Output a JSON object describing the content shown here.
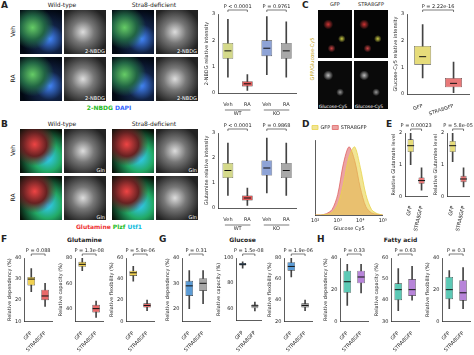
{
  "panel_labels": [
    "A",
    "B",
    "C",
    "D",
    "E",
    "F",
    "G",
    "H"
  ],
  "section_titles": [
    "Glutamine",
    "Glucose",
    "Fatty acid"
  ],
  "images": {
    "A": {
      "columns": [
        "Wild-type",
        "Stra8-deficient"
      ],
      "rows": [
        "Veh",
        "RA"
      ],
      "tile_label": "2-NBDG",
      "stain": [
        "2-NBDG",
        "DAPI"
      ]
    },
    "B": {
      "columns": [
        "Wild-type",
        "Stra8-deficient"
      ],
      "rows": [
        "Veh",
        "RA"
      ],
      "tile_label": "Gln",
      "stain": [
        "Glutamine",
        "Plzf",
        "Utf1"
      ]
    },
    "C": {
      "columns": [
        "GFP",
        "STRA8GFP"
      ],
      "side_label": "GFP/Glucose-Cy5",
      "tile_label": "Glucose-Cy5"
    }
  },
  "chart_data": [
    {
      "type": "box",
      "y_label": "2-NBDG relative intensity",
      "categories": [
        "Veh",
        "RA",
        "Veh",
        "RA"
      ],
      "groups": [
        {
          "label": "WT",
          "from": 0,
          "to": 1
        },
        {
          "label": "KO",
          "from": 2,
          "to": 3
        }
      ],
      "colors": [
        "#d4d98a",
        "#e25b5b",
        "#8ea3d6",
        "#a8a8a8"
      ],
      "stats": [
        {
          "min": 0.6,
          "q1": 1.3,
          "median": 1.6,
          "q3": 1.9,
          "max": 2.8
        },
        {
          "min": 0.1,
          "q1": 0.25,
          "median": 0.35,
          "q3": 0.45,
          "max": 0.7
        },
        {
          "min": 0.7,
          "q1": 1.4,
          "median": 1.7,
          "q3": 2.0,
          "max": 2.9
        },
        {
          "min": 0.6,
          "q1": 1.3,
          "median": 1.6,
          "q3": 1.9,
          "max": 2.7
        }
      ],
      "ylim": [
        0,
        3
      ],
      "yticks": [
        0,
        1,
        2,
        3
      ],
      "grid": false,
      "annotations": [
        {
          "text": "P < 0.0001",
          "from": 0,
          "to": 1
        },
        {
          "text": "P = 0.9761",
          "from": 2,
          "to": 3
        }
      ]
    },
    {
      "type": "box",
      "y_label": "Glucose-Cy5 relative intensity",
      "categories": [
        "GFP",
        "STRA8GFP"
      ],
      "colors": [
        "#e6dc7a",
        "#e87878"
      ],
      "stats": [
        {
          "min": 0.6,
          "q1": 1.1,
          "median": 1.4,
          "q3": 1.8,
          "max": 2.6
        },
        {
          "min": 0.05,
          "q1": 0.25,
          "median": 0.4,
          "q3": 0.6,
          "max": 1.2
        }
      ],
      "ylim": [
        0,
        3
      ],
      "yticks": [
        0,
        1,
        2,
        3
      ],
      "grid": false,
      "annotations": [
        {
          "text": "P = 2.22e-16",
          "from": 0,
          "to": 1
        }
      ]
    },
    {
      "type": "box",
      "y_label": "Glutamine relative intensity",
      "categories": [
        "Veh",
        "RA",
        "Veh",
        "RA"
      ],
      "groups": [
        {
          "label": "WT",
          "from": 0,
          "to": 1
        },
        {
          "label": "KO",
          "from": 2,
          "to": 3
        }
      ],
      "colors": [
        "#d4d98a",
        "#e25b5b",
        "#8ea3d6",
        "#a8a8a8"
      ],
      "stats": [
        {
          "min": 0.5,
          "q1": 1.2,
          "median": 1.5,
          "q3": 1.8,
          "max": 2.6
        },
        {
          "min": 0.1,
          "q1": 0.3,
          "median": 0.4,
          "q3": 0.5,
          "max": 0.8
        },
        {
          "min": 0.6,
          "q1": 1.3,
          "median": 1.6,
          "q3": 1.9,
          "max": 2.8
        },
        {
          "min": 0.5,
          "q1": 1.2,
          "median": 1.5,
          "q3": 1.8,
          "max": 2.6
        }
      ],
      "ylim": [
        0,
        3
      ],
      "yticks": [
        0,
        1,
        2,
        3
      ],
      "grid": false,
      "annotations": [
        {
          "text": "P < 0.0001",
          "from": 0,
          "to": 1
        },
        {
          "text": "P = 0.9868",
          "from": 2,
          "to": 3
        }
      ]
    },
    {
      "type": "area",
      "x_label": "Glucose Cy5",
      "log": "x",
      "x": [
        100,
        178,
        316,
        562,
        1000,
        1778,
        3162,
        5623,
        10000,
        17783,
        31623,
        56234,
        100000
      ],
      "series": [
        {
          "name": "GFP",
          "color": "#e8d44d",
          "values": [
            0,
            0,
            1,
            4,
            15,
            45,
            85,
            100,
            70,
            30,
            8,
            2,
            0
          ]
        },
        {
          "name": "STRA8GFP",
          "color": "#e06666",
          "values": [
            0,
            0,
            2,
            8,
            30,
            75,
            100,
            80,
            40,
            12,
            3,
            1,
            0
          ]
        }
      ],
      "xlim": [
        100,
        100000
      ],
      "xticks": [
        {
          "value": 100,
          "label": "10²"
        },
        {
          "value": 1000,
          "label": "10³"
        },
        {
          "value": 10000,
          "label": "10⁴"
        },
        {
          "value": 100000,
          "label": "10⁵"
        }
      ],
      "ylim": [
        0,
        110
      ],
      "yticks": [],
      "tick_labels": "x",
      "legend": "top-left",
      "grid": false
    },
    {
      "type": "box",
      "y_label": "Relative Glutamate level",
      "categories": [
        "GFP",
        "STRA8GFP"
      ],
      "colors": [
        "#e6dc7a",
        "#e87878"
      ],
      "stats": [
        {
          "min": 1.0,
          "q1": 1.4,
          "median": 1.6,
          "q3": 1.8,
          "max": 2.0
        },
        {
          "min": 0.2,
          "q1": 0.4,
          "median": 0.5,
          "q3": 0.6,
          "max": 0.9
        }
      ],
      "ylim": [
        0,
        2
      ],
      "yticks": [
        0,
        1,
        2
      ],
      "grid": false,
      "annotations": [
        {
          "text": "P = 0.00023",
          "from": 0,
          "to": 1
        }
      ]
    },
    {
      "type": "box",
      "y_label": "Relative Glutamine level",
      "categories": [
        "GFP",
        "STRA8GFP"
      ],
      "colors": [
        "#e6dc7a",
        "#e87878"
      ],
      "stats": [
        {
          "min": 1.1,
          "q1": 1.4,
          "median": 1.6,
          "q3": 1.75,
          "max": 2.0
        },
        {
          "min": 0.3,
          "q1": 0.45,
          "median": 0.55,
          "q3": 0.65,
          "max": 0.9
        }
      ],
      "ylim": [
        0,
        2
      ],
      "yticks": [
        0,
        1,
        2
      ],
      "grid": false,
      "annotations": [
        {
          "text": "P = 5.8e-05",
          "from": 0,
          "to": 1
        }
      ]
    },
    {
      "type": "box",
      "y_label": "Relative dependency (%)",
      "categories": [
        "GFP",
        "STRA8GFP"
      ],
      "colors": [
        "#f0d050",
        "#e86a6a"
      ],
      "stats": [
        {
          "min": 24,
          "q1": 27,
          "median": 30,
          "q3": 31,
          "max": 35
        },
        {
          "min": 17,
          "q1": 20,
          "median": 22,
          "q3": 25,
          "max": 28
        }
      ],
      "ylim": [
        10,
        40
      ],
      "yticks": [
        10,
        20,
        30,
        40
      ],
      "grid": false,
      "annotations": [
        {
          "text": "P = 0.088",
          "from": 0,
          "to": 1
        }
      ]
    },
    {
      "type": "box",
      "y_label": "Relative capacity (%)",
      "categories": [
        "GFP",
        "STRA8GFP"
      ],
      "colors": [
        "#f0d050",
        "#e86a6a"
      ],
      "stats": [
        {
          "min": 70,
          "q1": 73,
          "median": 75,
          "q3": 77,
          "max": 80
        },
        {
          "min": 33,
          "q1": 37,
          "median": 40,
          "q3": 43,
          "max": 46
        }
      ],
      "ylim": [
        30,
        80
      ],
      "yticks": [
        40,
        60,
        80
      ],
      "grid": false,
      "annotations": [
        {
          "text": "P = 1.3e-08",
          "from": 0,
          "to": 1
        }
      ]
    },
    {
      "type": "box",
      "y_label": "Relative flexibility (%)",
      "categories": [
        "GFP",
        "STRA8GFP"
      ],
      "colors": [
        "#f0d050",
        "#e86a6a"
      ],
      "stats": [
        {
          "min": 38,
          "q1": 43,
          "median": 46,
          "q3": 48,
          "max": 52
        },
        {
          "min": 10,
          "q1": 13,
          "median": 15,
          "q3": 17,
          "max": 20
        }
      ],
      "ylim": [
        0,
        60
      ],
      "yticks": [
        0,
        20,
        40,
        60
      ],
      "grid": false,
      "annotations": [
        {
          "text": "P = 5.9e-06",
          "from": 0,
          "to": 1
        }
      ]
    },
    {
      "type": "box",
      "y_label": "Relative dependency (%)",
      "categories": [
        "GFP",
        "STRA8GFP"
      ],
      "colors": [
        "#5b9bd5",
        "#a6a6a6"
      ],
      "stats": [
        {
          "min": 20,
          "q1": 25,
          "median": 29,
          "q3": 31,
          "max": 35
        },
        {
          "min": 22,
          "q1": 27,
          "median": 30,
          "q3": 32,
          "max": 35
        }
      ],
      "ylim": [
        15,
        40
      ],
      "yticks": [
        20,
        30,
        40
      ],
      "grid": false,
      "annotations": [
        {
          "text": "P = 0.31",
          "from": 0,
          "to": 1
        }
      ]
    },
    {
      "type": "box",
      "y_label": "Relative capacity (%)",
      "categories": [
        "GFP",
        "STRA8GFP"
      ],
      "colors": [
        "#5b9bd5",
        "#a6a6a6"
      ],
      "stats": [
        {
          "min": 92,
          "q1": 94,
          "median": 95,
          "q3": 96,
          "max": 97
        },
        {
          "min": 58,
          "q1": 60,
          "median": 62,
          "q3": 63,
          "max": 65
        }
      ],
      "ylim": [
        50,
        100
      ],
      "yticks": [
        60,
        80,
        100
      ],
      "grid": false,
      "annotations": [
        {
          "text": "P = 1.5e-08",
          "from": 0,
          "to": 1
        }
      ]
    },
    {
      "type": "box",
      "y_label": "Relative flexibility (%)",
      "categories": [
        "GFP",
        "STRA8GFP"
      ],
      "colors": [
        "#5b9bd5",
        "#a6a6a6"
      ],
      "stats": [
        {
          "min": 62,
          "q1": 68,
          "median": 72,
          "q3": 76,
          "max": 80
        },
        {
          "min": 30,
          "q1": 33,
          "median": 35,
          "q3": 37,
          "max": 40
        }
      ],
      "ylim": [
        20,
        80
      ],
      "yticks": [
        20,
        40,
        60,
        80
      ],
      "grid": false,
      "annotations": [
        {
          "text": "P = 1.9e-06",
          "from": 0,
          "to": 1
        }
      ]
    },
    {
      "type": "box",
      "y_label": "Relative dependency (%)",
      "categories": [
        "GFP",
        "STRA8GFP"
      ],
      "colors": [
        "#5cc9b5",
        "#b784d9"
      ],
      "stats": [
        {
          "min": 10,
          "q1": 18,
          "median": 25,
          "q3": 32,
          "max": 36
        },
        {
          "min": 18,
          "q1": 24,
          "median": 28,
          "q3": 32,
          "max": 36
        }
      ],
      "ylim": [
        0,
        40
      ],
      "yticks": [
        0,
        20,
        40
      ],
      "grid": false,
      "annotations": [
        {
          "text": "P = 0.33",
          "from": 0,
          "to": 1
        }
      ]
    },
    {
      "type": "box",
      "y_label": "Relative capacity (%)",
      "categories": [
        "GFP",
        "STRA8GFP"
      ],
      "colors": [
        "#5cc9b5",
        "#b784d9"
      ],
      "stats": [
        {
          "min": 35,
          "q1": 40,
          "median": 45,
          "q3": 48,
          "max": 55
        },
        {
          "min": 40,
          "q1": 42,
          "median": 45,
          "q3": 50,
          "max": 56
        }
      ],
      "ylim": [
        30,
        60
      ],
      "yticks": [
        30,
        40,
        50,
        60
      ],
      "grid": false,
      "annotations": [
        {
          "text": "P = 0.63",
          "from": 0,
          "to": 1
        }
      ]
    },
    {
      "type": "box",
      "y_label": "Relative flexibility (%)",
      "categories": [
        "GFP",
        "STRA8GFP"
      ],
      "colors": [
        "#5cc9b5",
        "#b784d9"
      ],
      "stats": [
        {
          "min": 8,
          "q1": 14,
          "median": 20,
          "q3": 28,
          "max": 32
        },
        {
          "min": 8,
          "q1": 13,
          "median": 18,
          "q3": 26,
          "max": 34
        }
      ],
      "ylim": [
        0,
        40
      ],
      "yticks": [
        0,
        20,
        40
      ],
      "grid": false,
      "annotations": [
        {
          "text": "P = 0.3",
          "from": 0,
          "to": 1
        }
      ]
    }
  ]
}
